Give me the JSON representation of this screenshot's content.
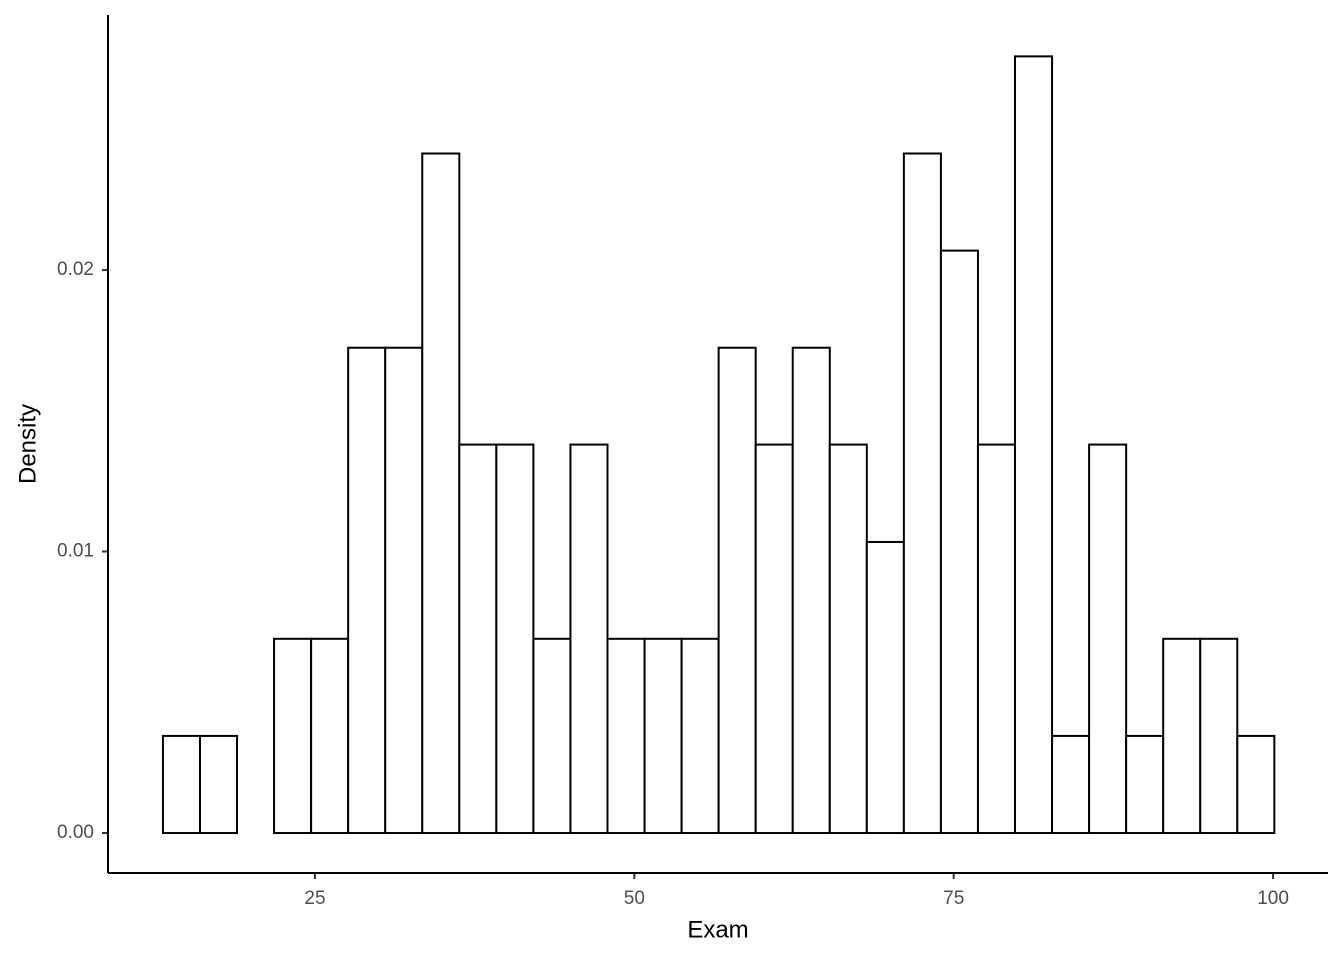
{
  "chart_data": {
    "type": "histogram",
    "x_label": "Exam",
    "y_label": "Density",
    "bins": [
      13.1,
      16,
      18.9,
      21.8,
      24.7,
      27.6,
      30.5,
      33.4,
      36.3,
      39.2,
      42.1,
      45,
      47.9,
      50.8,
      53.7,
      56.6,
      59.5,
      62.4,
      65.3,
      68.2,
      71.1,
      74,
      76.9,
      79.8,
      82.7,
      85.6,
      88.5,
      91.4,
      94.3,
      97.2,
      100.1
    ],
    "values": [
      0.00345,
      0.00345,
      0,
      0.0069,
      0.0069,
      0.01724,
      0.01724,
      0.02414,
      0.0138,
      0.0138,
      0.0069,
      0.0138,
      0.0069,
      0.0069,
      0.0069,
      0.01724,
      0.0138,
      0.01724,
      0.0138,
      0.01034,
      0.02414,
      0.02069,
      0.0138,
      0.02759,
      0.00345,
      0.0138,
      0.00345,
      0.0069,
      0.0069,
      0.00345
    ],
    "fill": "#ffffff",
    "edge_color": "#000000",
    "xlim": [
      8.8,
      104.3
    ],
    "xticks": [
      25,
      50,
      75,
      100
    ],
    "ylim": [
      -0.00142,
      0.02906
    ],
    "yticks": [
      {
        "value": 0,
        "label": "0.00"
      },
      {
        "value": 0.01,
        "label": "0.01"
      },
      {
        "value": 0.02,
        "label": "0.02"
      }
    ],
    "grid": false
  }
}
